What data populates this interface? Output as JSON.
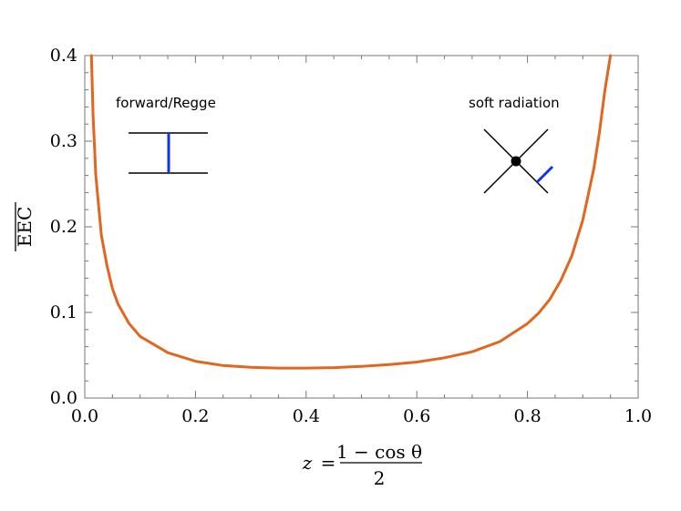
{
  "chart_data": {
    "type": "line",
    "xlabel": {
      "lhs": "z",
      "equals": "=",
      "numerator": "1 − cos θ",
      "denominator": "2"
    },
    "ylabel": "EEC",
    "xlim": [
      0.0,
      1.0
    ],
    "ylim": [
      0.0,
      0.4
    ],
    "xticks": [
      "0.0",
      "0.2",
      "0.4",
      "0.6",
      "0.8",
      "1.0"
    ],
    "yticks": [
      "0.0",
      "0.1",
      "0.2",
      "0.3",
      "0.4"
    ],
    "grid": false,
    "series": [
      {
        "color": "#e3661e",
        "x": [
          0.012,
          0.015,
          0.02,
          0.03,
          0.04,
          0.05,
          0.06,
          0.08,
          0.1,
          0.15,
          0.2,
          0.25,
          0.3,
          0.35,
          0.4,
          0.45,
          0.5,
          0.55,
          0.6,
          0.65,
          0.7,
          0.75,
          0.8,
          0.82,
          0.84,
          0.86,
          0.88,
          0.9,
          0.92,
          0.93,
          0.94,
          0.95
        ],
        "y": [
          0.4,
          0.33,
          0.26,
          0.19,
          0.155,
          0.128,
          0.11,
          0.087,
          0.072,
          0.053,
          0.043,
          0.038,
          0.036,
          0.035,
          0.035,
          0.0355,
          0.037,
          0.039,
          0.042,
          0.047,
          0.054,
          0.066,
          0.087,
          0.099,
          0.115,
          0.137,
          0.166,
          0.208,
          0.268,
          0.31,
          0.36,
          0.4
        ]
      }
    ],
    "annotations": [
      {
        "text": "forward/Regge",
        "icon": "ladder-diagram-icon",
        "accent": "#1133ee"
      },
      {
        "text": "soft radiation",
        "icon": "vertex-emission-diagram-icon",
        "accent": "#1133ee"
      }
    ]
  }
}
